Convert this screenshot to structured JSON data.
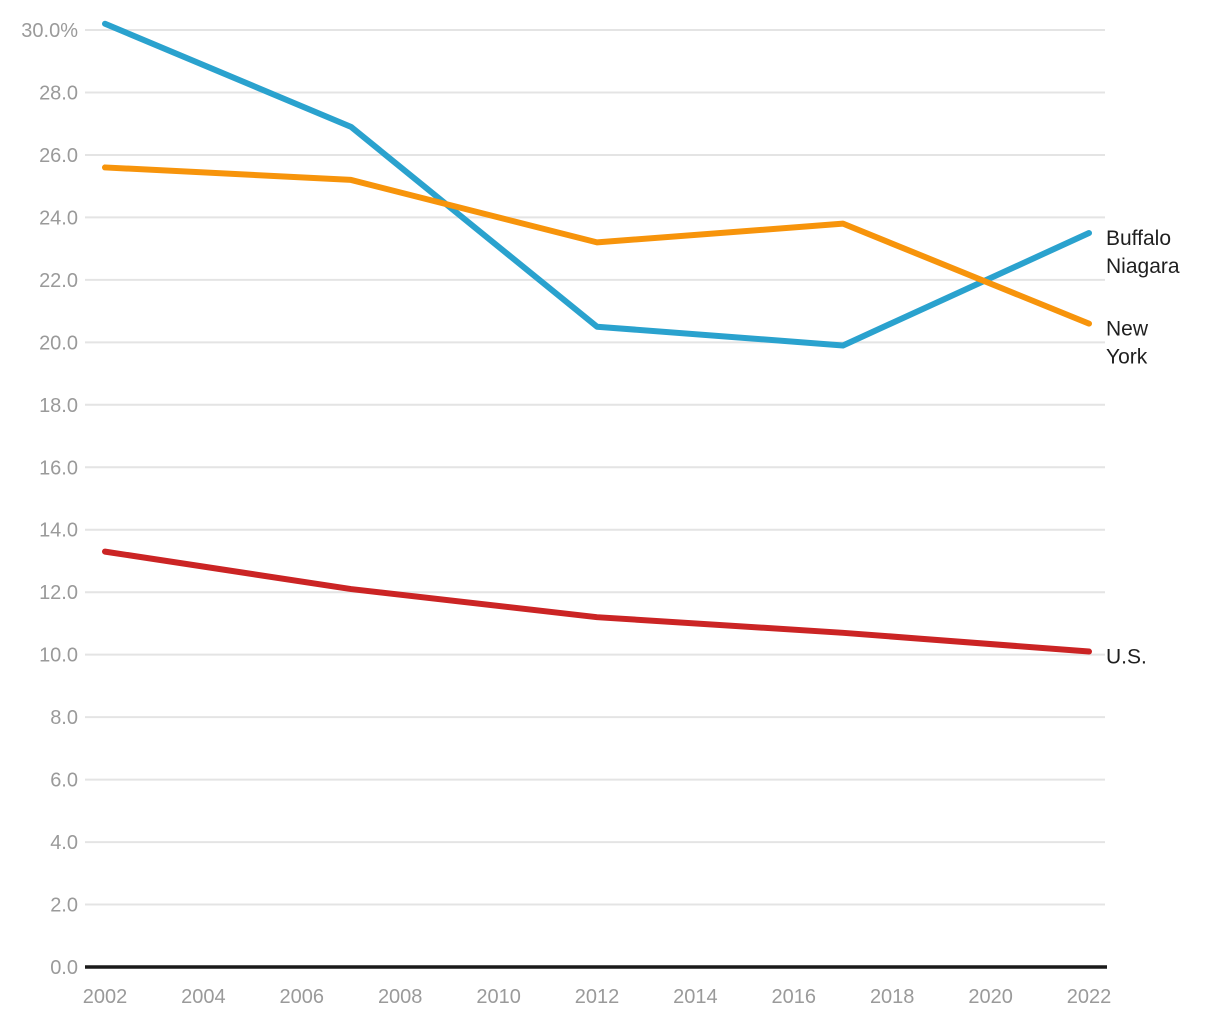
{
  "chart_data": {
    "type": "line",
    "title": "",
    "xlabel": "",
    "ylabel": "",
    "x": [
      2002,
      2007,
      2012,
      2017,
      2022
    ],
    "series": [
      {
        "name": "Buffalo Niagara",
        "label_lines": [
          "Buffalo",
          "Niagara"
        ],
        "color": "#2aa2ce",
        "values": [
          30.2,
          26.9,
          20.5,
          19.9,
          23.5
        ]
      },
      {
        "name": "New York",
        "label_lines": [
          "New",
          "York"
        ],
        "color": "#f7940b",
        "values": [
          25.6,
          25.2,
          23.2,
          23.8,
          20.6
        ]
      },
      {
        "name": "U.S.",
        "label_lines": [
          "U.S."
        ],
        "color": "#cb2424",
        "values": [
          13.3,
          12.1,
          11.2,
          10.7,
          10.1
        ]
      }
    ],
    "y_axis": {
      "min": 0,
      "max": 30,
      "tick_step": 2,
      "tick_labels_top_to_bottom": [
        "30.0%",
        "28.0",
        "26.0",
        "24.0",
        "22.0",
        "20.0",
        "18.0",
        "16.0",
        "14.0",
        "12.0",
        "10.0",
        "8.0",
        "6.0",
        "4.0",
        "2.0",
        "0.0"
      ]
    },
    "x_axis": {
      "tick_labels": [
        "2002",
        "2004",
        "2006",
        "2008",
        "2010",
        "2012",
        "2014",
        "2016",
        "2018",
        "2020",
        "2022"
      ]
    },
    "grid": true,
    "legend_position": "direct-labels-right"
  },
  "colors": {
    "gridline": "#e4e4e4",
    "axis_line": "#1a1a1a",
    "tick_text": "#9a9a9a",
    "label_text": "#1f1f1f",
    "background": "#ffffff"
  }
}
